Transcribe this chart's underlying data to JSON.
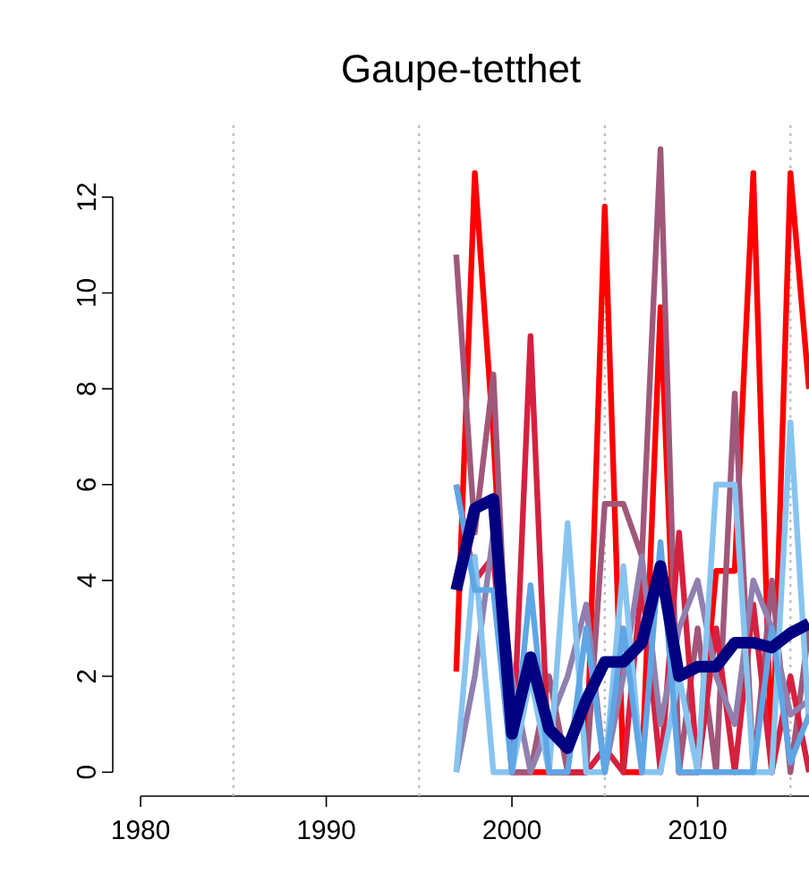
{
  "chart_data": {
    "type": "line",
    "title": "Gaupe-tetthet",
    "x": [
      1997,
      1998,
      1999,
      2000,
      2001,
      2002,
      2003,
      2004,
      2005,
      2006,
      2007,
      2008,
      2009,
      2010,
      2011,
      2012,
      2013,
      2014,
      2015,
      2016
    ],
    "series": [
      {
        "color": "#ff0000",
        "values": [
          2.1,
          12.5,
          7,
          0,
          0,
          0,
          0,
          0,
          11.8,
          0,
          0,
          9.7,
          0,
          0,
          4.2,
          4.2,
          12.5,
          0,
          12.5,
          8
        ]
      },
      {
        "color": "#a0587a",
        "values": [
          10.8,
          5,
          8.3,
          0,
          0,
          2,
          0,
          0,
          5.6,
          5.6,
          4.5,
          13,
          0,
          3,
          0,
          7.9,
          0,
          4,
          0,
          3
        ]
      },
      {
        "color": "#d62040",
        "values": [
          6,
          4,
          4.5,
          0,
          9.1,
          0,
          0,
          0,
          0.5,
          0,
          4,
          0,
          5,
          0,
          3,
          0,
          3.5,
          0,
          2,
          0
        ]
      },
      {
        "color": "#9080b0",
        "values": [
          0,
          2,
          5,
          2,
          0,
          1,
          2,
          3.5,
          0,
          2,
          4.5,
          1,
          3,
          4,
          2,
          1,
          4,
          3,
          1.2,
          1.5
        ]
      },
      {
        "color": "#87c4f0",
        "values": [
          0,
          4.5,
          0,
          0,
          2,
          0,
          5.2,
          0,
          0,
          4.3,
          0,
          0,
          2,
          0,
          6,
          6,
          0,
          0,
          7.3,
          1
        ]
      },
      {
        "color": "#5ea6e6",
        "values": [
          6,
          3.8,
          3.8,
          0,
          3.9,
          0,
          0,
          3,
          0,
          3,
          0,
          4.8,
          0,
          0,
          0,
          0,
          0,
          3,
          0.2,
          1.2
        ]
      },
      {
        "color": "#000080",
        "values": [
          3.8,
          5.5,
          5.7,
          0.8,
          2.4,
          0.9,
          0.5,
          1.5,
          2.3,
          2.3,
          2.7,
          4.3,
          2.0,
          2.2,
          2.2,
          2.7,
          2.7,
          2.6,
          2.9,
          3.1
        ]
      }
    ],
    "xlim": [
      1978.5,
      2016
    ],
    "ylim": [
      -0.5,
      13.5
    ],
    "xticks": [
      1980,
      1990,
      2000,
      2010
    ],
    "yticks": [
      0,
      2,
      4,
      6,
      8,
      10,
      12
    ],
    "ref_lines": [
      {
        "axis": "x",
        "value": 1985,
        "color": "#bebebe",
        "line_style": "dotted"
      },
      {
        "axis": "x",
        "value": 1995,
        "color": "#bebebe",
        "line_style": "dotted"
      },
      {
        "axis": "x",
        "value": 2005,
        "color": "#bebebe",
        "line_style": "dotted"
      },
      {
        "axis": "x",
        "value": 2015,
        "color": "#bebebe",
        "line_style": "dotted"
      }
    ],
    "marker": "none",
    "line_style": "solid"
  }
}
